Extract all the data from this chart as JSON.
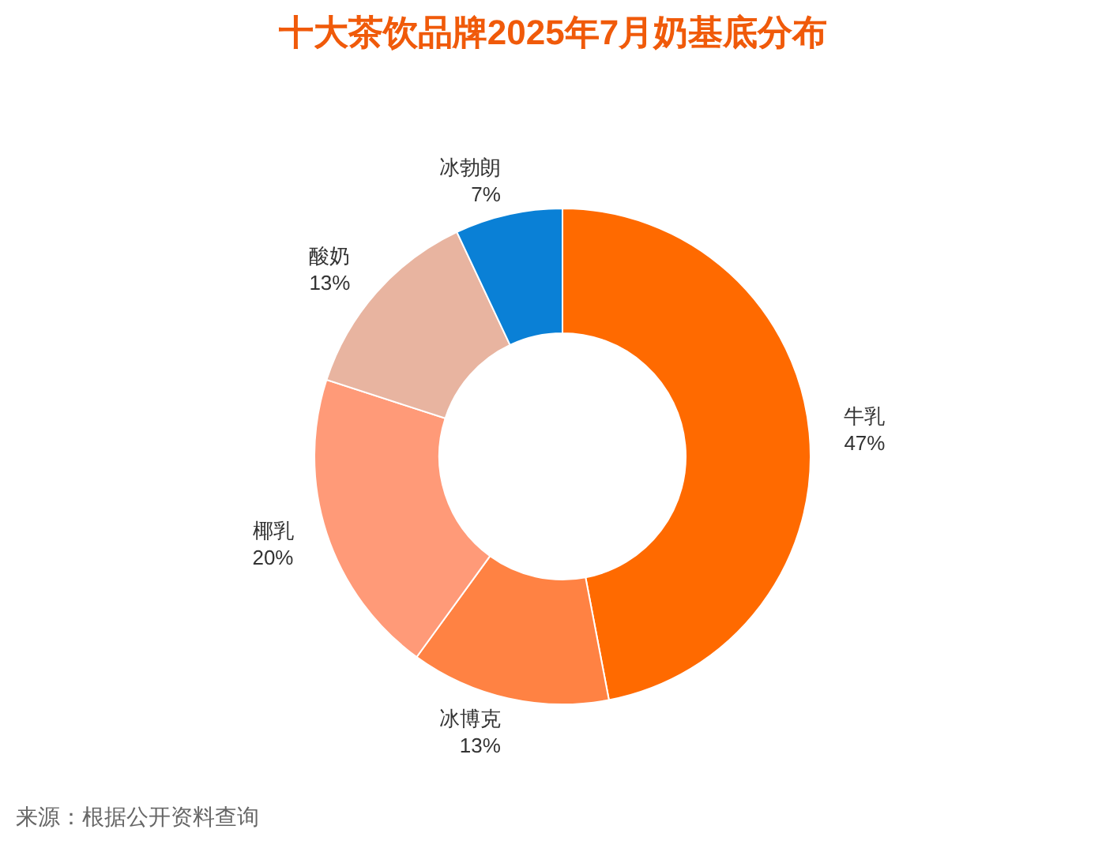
{
  "chart_data": {
    "type": "donut",
    "title": "十大茶饮品牌2025年7月奶基底分布",
    "categories": [
      "牛乳",
      "冰博克",
      "椰乳",
      "酸奶",
      "冰勃朗"
    ],
    "values": [
      47,
      13,
      20,
      13,
      7
    ],
    "colors": [
      "#ff6a00",
      "#ff8243",
      "#ff9a78",
      "#e8b4a0",
      "#0a80d6"
    ],
    "value_labels": [
      "47%",
      "13%",
      "20%",
      "13%",
      "7%"
    ],
    "annotations": [
      "来源：根据公开资料查询"
    ]
  }
}
